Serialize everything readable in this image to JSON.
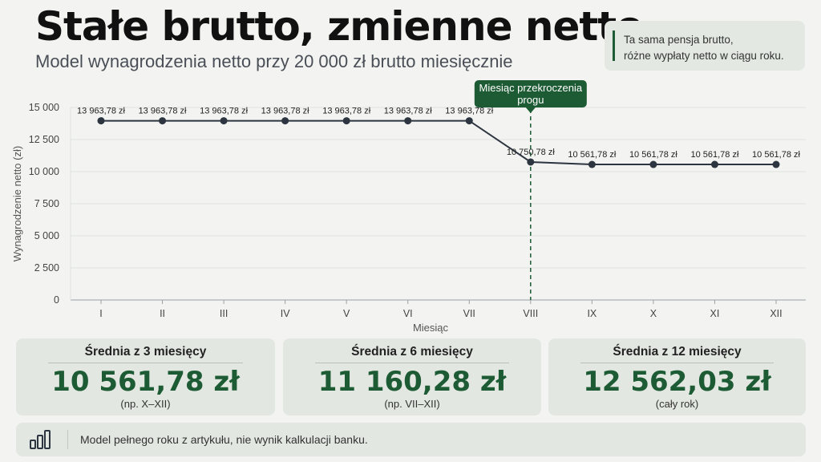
{
  "header": {
    "title": "Stałe brutto, zmienne netto",
    "subtitle": "Model wynagrodzenia netto przy 20 000 zł brutto miesięcznie"
  },
  "note": {
    "line1": "Ta sama pensja brutto,",
    "line2": "różne wypłaty netto w ciągu roku."
  },
  "chart_data": {
    "type": "line",
    "categories": [
      "I",
      "II",
      "III",
      "IV",
      "V",
      "VI",
      "VII",
      "VIII",
      "IX",
      "X",
      "XI",
      "XII"
    ],
    "series": [
      {
        "values": [
          13963.78,
          13963.78,
          13963.78,
          13963.78,
          13963.78,
          13963.78,
          13963.78,
          10750.78,
          10561.78,
          10561.78,
          10561.78,
          10561.78
        ],
        "labels": [
          "13 963,78 zł",
          "13 963,78 zł",
          "13 963,78 zł",
          "13 963,78 zł",
          "13 963,78 zł",
          "13 963,78 zł",
          "13 963,78 zł",
          "10 750,78 zł",
          "10 561,78 zł",
          "10 561,78 zł",
          "10 561,78 zł",
          "10 561,78 zł"
        ],
        "color": "#2d3540"
      }
    ],
    "xlabel": "Miesiąc",
    "ylabel": "Wynagrodzenie netto (zł)",
    "ylim": [
      0,
      15000
    ],
    "yticks": [
      0,
      2500,
      5000,
      7500,
      10000,
      12500,
      15000
    ],
    "ytick_labels": [
      "0",
      "2 500",
      "5 000",
      "7 500",
      "10 000",
      "12 500",
      "15 000"
    ],
    "grid": true,
    "annotation": {
      "category": "VIII",
      "text_line1": "Miesiąc przekroczenia",
      "text_line2": "progu",
      "color": "#1d5b34"
    }
  },
  "cards": [
    {
      "title": "Średnia z 3 miesięcy",
      "value": "10 561,78 zł",
      "sub": "(np. X–XII)"
    },
    {
      "title": "Średnia z 6 miesięcy",
      "value": "11 160,28 zł",
      "sub": "(np. VII–XII)"
    },
    {
      "title": "Średnia z 12 miesięcy",
      "value": "12 562,03 zł",
      "sub": "(cały rok)"
    }
  ],
  "footer": {
    "text": "Model pełnego roku z artykułu, nie wynik kalkulacji banku.",
    "icon": "bar-chart-icon"
  },
  "colors": {
    "accent": "#1d5b34",
    "line": "#2d3540",
    "background": "#f3f4f1"
  }
}
